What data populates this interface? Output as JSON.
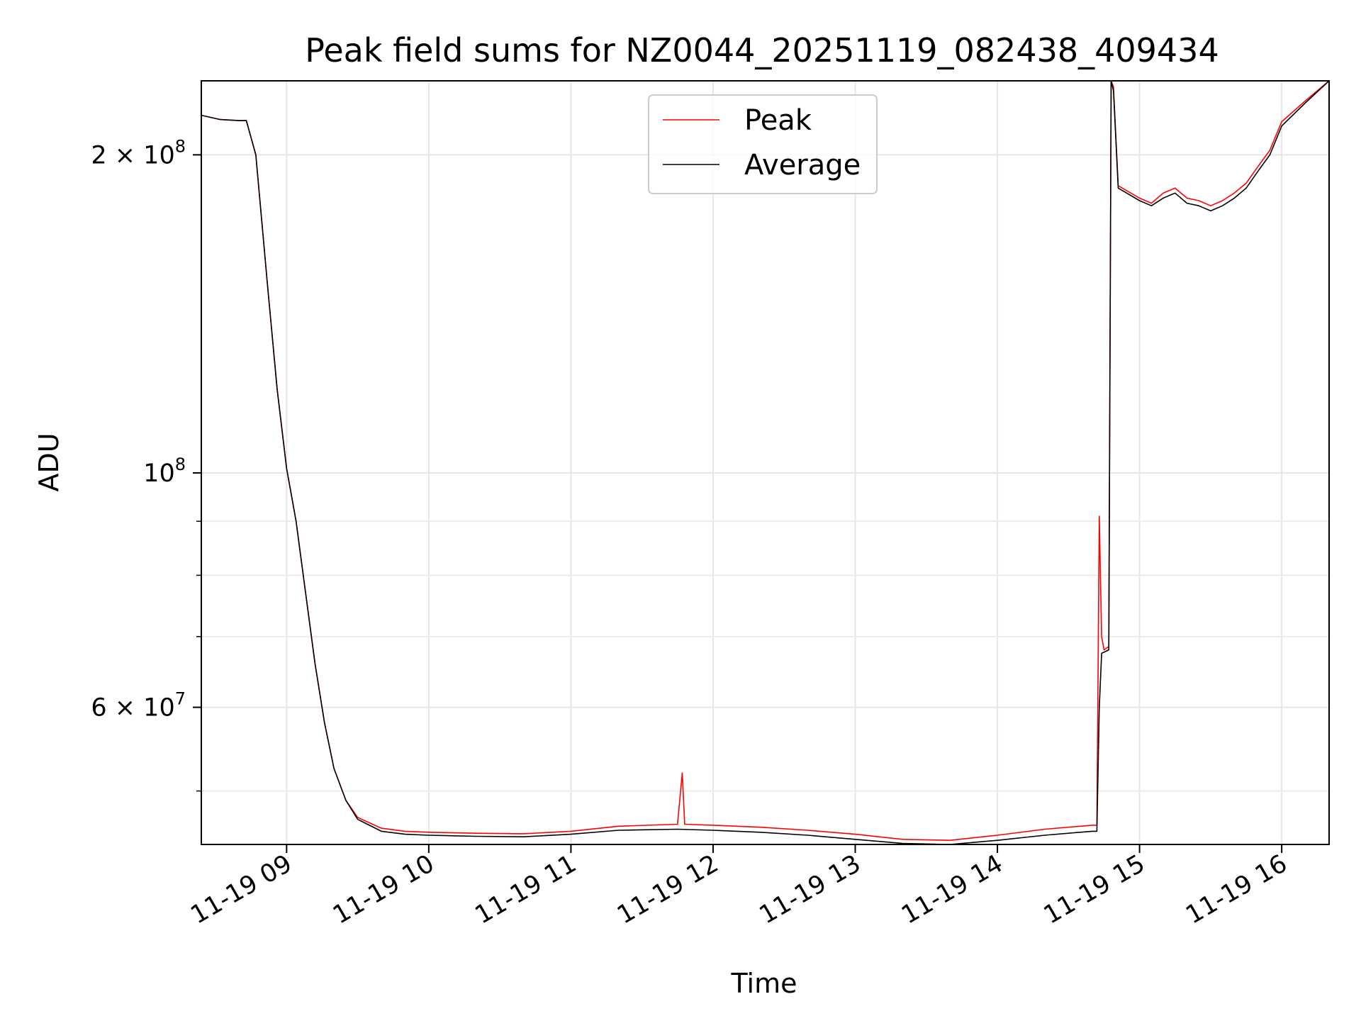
{
  "chart_data": {
    "type": "line",
    "title": "Peak field sums for NZ0044_20251119_082438_409434",
    "xlabel": "Time",
    "ylabel": "ADU",
    "y_scale": "log",
    "grid": true,
    "legend_position": "top-center",
    "xlim": [
      "2025-11-19 08:24",
      "2025-11-19 16:20"
    ],
    "ylim": [
      44500000,
      235000000
    ],
    "x_ticks": [
      {
        "value": "2025-11-19 09:00",
        "label": "11-19 09"
      },
      {
        "value": "2025-11-19 10:00",
        "label": "11-19 10"
      },
      {
        "value": "2025-11-19 11:00",
        "label": "11-19 11"
      },
      {
        "value": "2025-11-19 12:00",
        "label": "11-19 12"
      },
      {
        "value": "2025-11-19 13:00",
        "label": "11-19 13"
      },
      {
        "value": "2025-11-19 14:00",
        "label": "11-19 14"
      },
      {
        "value": "2025-11-19 15:00",
        "label": "11-19 15"
      },
      {
        "value": "2025-11-19 16:00",
        "label": "11-19 16"
      }
    ],
    "y_major_ticks": [
      {
        "value": 60000000,
        "label": "6 × 10",
        "exp": "7"
      },
      {
        "value": 100000000,
        "label": "10",
        "exp": "8"
      },
      {
        "value": 200000000,
        "label": "2 × 10",
        "exp": "8"
      }
    ],
    "y_minor_ticks": [
      50000000,
      70000000,
      80000000,
      90000000
    ],
    "series": [
      {
        "name": "Peak",
        "color": "#ff0000",
        "points": [
          [
            "2025-11-19 08:24",
            218000000
          ],
          [
            "2025-11-19 08:32",
            216000000
          ],
          [
            "2025-11-19 08:40",
            215500000
          ],
          [
            "2025-11-19 08:43",
            215500000
          ],
          [
            "2025-11-19 08:47",
            200000000
          ],
          [
            "2025-11-19 08:52",
            150000000
          ],
          [
            "2025-11-19 08:56",
            120000000
          ],
          [
            "2025-11-19 09:00",
            101000000
          ],
          [
            "2025-11-19 09:04",
            90000000
          ],
          [
            "2025-11-19 09:08",
            77000000
          ],
          [
            "2025-11-19 09:12",
            66000000
          ],
          [
            "2025-11-19 09:16",
            58000000
          ],
          [
            "2025-11-19 09:20",
            52500000
          ],
          [
            "2025-11-19 09:25",
            49000000
          ],
          [
            "2025-11-19 09:30",
            47200000
          ],
          [
            "2025-11-19 09:40",
            46100000
          ],
          [
            "2025-11-19 09:50",
            45800000
          ],
          [
            "2025-11-19 10:00",
            45700000
          ],
          [
            "2025-11-19 10:20",
            45600000
          ],
          [
            "2025-11-19 10:40",
            45550000
          ],
          [
            "2025-11-19 11:00",
            45800000
          ],
          [
            "2025-11-19 11:20",
            46300000
          ],
          [
            "2025-11-19 11:45",
            46500000
          ],
          [
            "2025-11-19 11:47",
            52000000
          ],
          [
            "2025-11-19 11:48",
            46500000
          ],
          [
            "2025-11-19 12:00",
            46400000
          ],
          [
            "2025-11-19 12:20",
            46200000
          ],
          [
            "2025-11-19 12:40",
            45900000
          ],
          [
            "2025-11-19 13:00",
            45500000
          ],
          [
            "2025-11-19 13:20",
            45000000
          ],
          [
            "2025-11-19 13:40",
            44900000
          ],
          [
            "2025-11-19 14:00",
            45400000
          ],
          [
            "2025-11-19 14:20",
            46000000
          ],
          [
            "2025-11-19 14:40",
            46400000
          ],
          [
            "2025-11-19 14:42",
            46400000
          ],
          [
            "2025-11-19 14:43",
            91000000
          ],
          [
            "2025-11-19 14:44",
            70000000
          ],
          [
            "2025-11-19 14:45",
            68000000
          ],
          [
            "2025-11-19 14:47",
            68500000
          ],
          [
            "2025-11-19 14:48",
            235000000
          ],
          [
            "2025-11-19 14:49",
            232000000
          ],
          [
            "2025-11-19 14:51",
            187000000
          ],
          [
            "2025-11-19 15:00",
            182000000
          ],
          [
            "2025-11-19 15:05",
            180000000
          ],
          [
            "2025-11-19 15:10",
            184000000
          ],
          [
            "2025-11-19 15:15",
            186000000
          ],
          [
            "2025-11-19 15:20",
            182000000
          ],
          [
            "2025-11-19 15:25",
            181000000
          ],
          [
            "2025-11-19 15:30",
            179000000
          ],
          [
            "2025-11-19 15:35",
            181000000
          ],
          [
            "2025-11-19 15:40",
            184000000
          ],
          [
            "2025-11-19 15:45",
            188000000
          ],
          [
            "2025-11-19 15:50",
            195000000
          ],
          [
            "2025-11-19 15:55",
            202000000
          ],
          [
            "2025-11-19 16:00",
            215000000
          ],
          [
            "2025-11-19 16:10",
            225000000
          ],
          [
            "2025-11-19 16:20",
            235000000
          ]
        ]
      },
      {
        "name": "Average",
        "color": "#000000",
        "points": [
          [
            "2025-11-19 08:24",
            218000000
          ],
          [
            "2025-11-19 08:32",
            216000000
          ],
          [
            "2025-11-19 08:40",
            215500000
          ],
          [
            "2025-11-19 08:43",
            215500000
          ],
          [
            "2025-11-19 08:47",
            200000000
          ],
          [
            "2025-11-19 08:52",
            150000000
          ],
          [
            "2025-11-19 08:56",
            120000000
          ],
          [
            "2025-11-19 09:00",
            101000000
          ],
          [
            "2025-11-19 09:04",
            90000000
          ],
          [
            "2025-11-19 09:08",
            77000000
          ],
          [
            "2025-11-19 09:12",
            66000000
          ],
          [
            "2025-11-19 09:16",
            58000000
          ],
          [
            "2025-11-19 09:20",
            52500000
          ],
          [
            "2025-11-19 09:25",
            49000000
          ],
          [
            "2025-11-19 09:30",
            47000000
          ],
          [
            "2025-11-19 09:40",
            45800000
          ],
          [
            "2025-11-19 09:50",
            45500000
          ],
          [
            "2025-11-19 10:00",
            45400000
          ],
          [
            "2025-11-19 10:20",
            45300000
          ],
          [
            "2025-11-19 10:40",
            45250000
          ],
          [
            "2025-11-19 11:00",
            45500000
          ],
          [
            "2025-11-19 11:20",
            45900000
          ],
          [
            "2025-11-19 11:45",
            46000000
          ],
          [
            "2025-11-19 12:00",
            45900000
          ],
          [
            "2025-11-19 12:20",
            45700000
          ],
          [
            "2025-11-19 12:40",
            45400000
          ],
          [
            "2025-11-19 13:00",
            45000000
          ],
          [
            "2025-11-19 13:20",
            44600000
          ],
          [
            "2025-11-19 13:40",
            44500000
          ],
          [
            "2025-11-19 14:00",
            44900000
          ],
          [
            "2025-11-19 14:20",
            45400000
          ],
          [
            "2025-11-19 14:40",
            45800000
          ],
          [
            "2025-11-19 14:42",
            45800000
          ],
          [
            "2025-11-19 14:43",
            60000000
          ],
          [
            "2025-11-19 14:44",
            67500000
          ],
          [
            "2025-11-19 14:47",
            68000000
          ],
          [
            "2025-11-19 14:48",
            235000000
          ],
          [
            "2025-11-19 14:49",
            230000000
          ],
          [
            "2025-11-19 14:51",
            186000000
          ],
          [
            "2025-11-19 15:00",
            181000000
          ],
          [
            "2025-11-19 15:05",
            179000000
          ],
          [
            "2025-11-19 15:10",
            182000000
          ],
          [
            "2025-11-19 15:15",
            184000000
          ],
          [
            "2025-11-19 15:20",
            180000000
          ],
          [
            "2025-11-19 15:25",
            179000000
          ],
          [
            "2025-11-19 15:30",
            177000000
          ],
          [
            "2025-11-19 15:35",
            179000000
          ],
          [
            "2025-11-19 15:40",
            182000000
          ],
          [
            "2025-11-19 15:45",
            186000000
          ],
          [
            "2025-11-19 15:50",
            193000000
          ],
          [
            "2025-11-19 15:55",
            200000000
          ],
          [
            "2025-11-19 16:00",
            213000000
          ],
          [
            "2025-11-19 16:10",
            224000000
          ],
          [
            "2025-11-19 16:20",
            235000000
          ]
        ]
      }
    ]
  }
}
